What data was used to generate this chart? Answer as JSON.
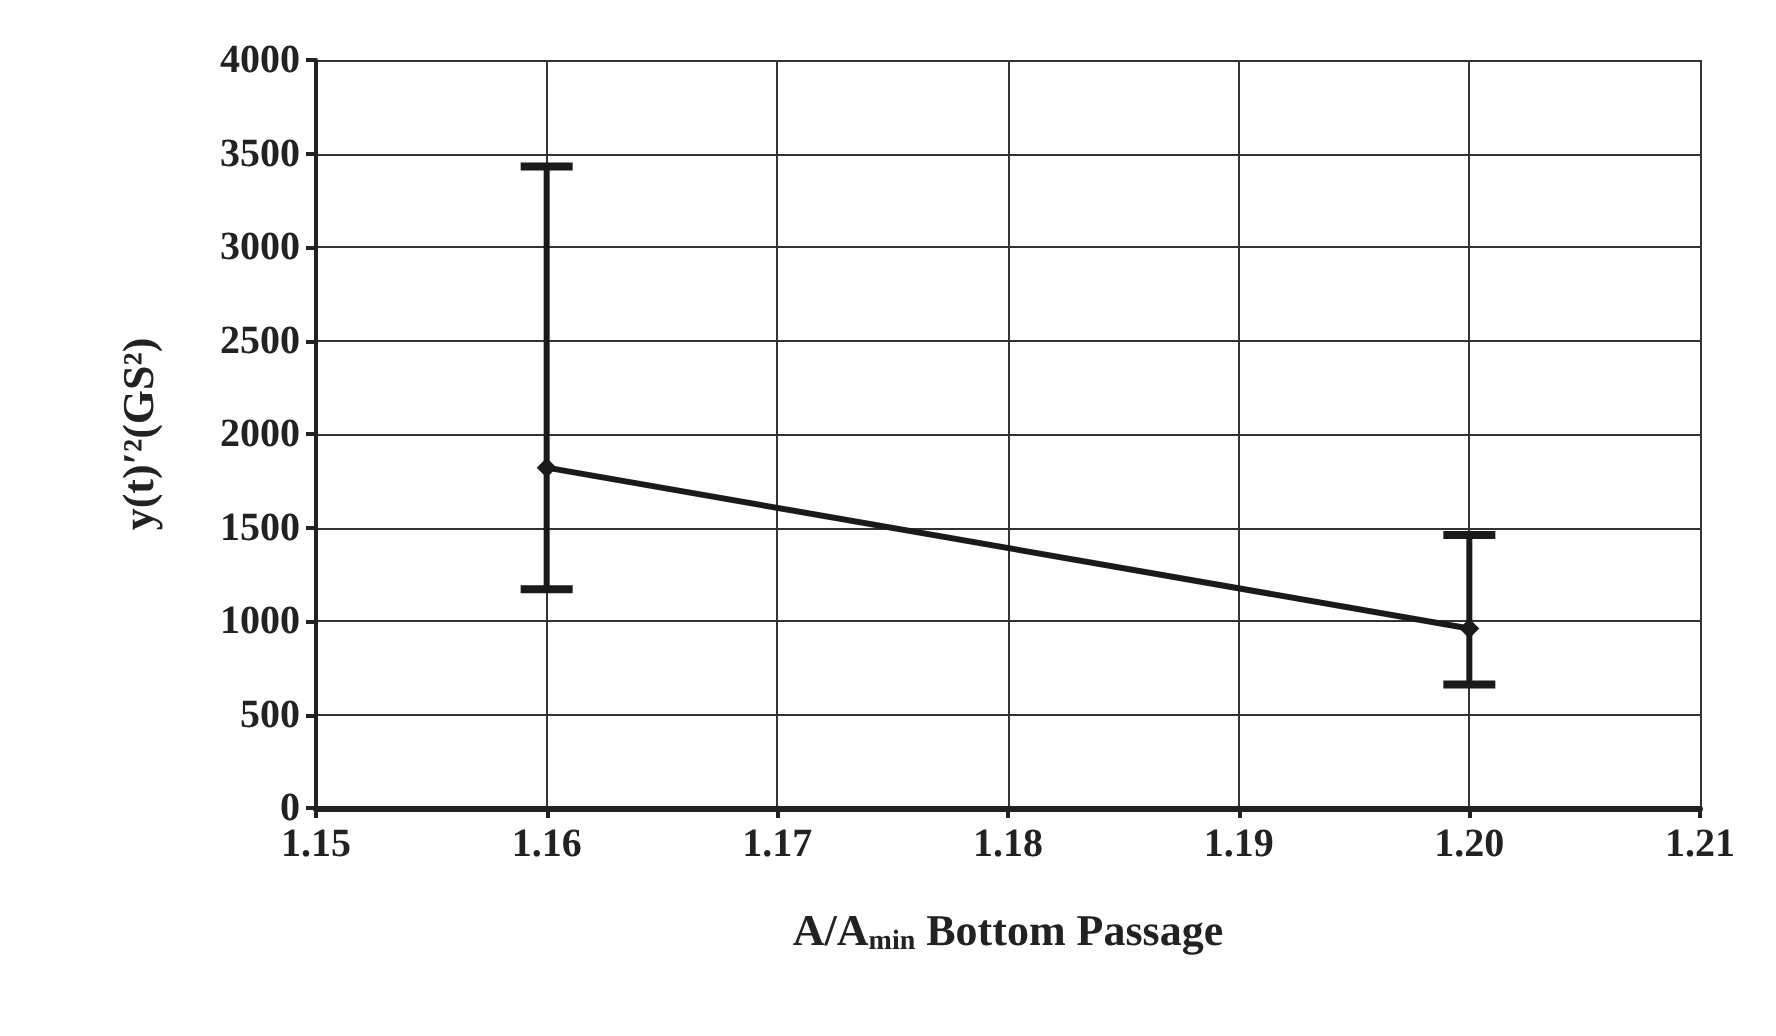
{
  "chart_data": {
    "type": "line",
    "xlabel": "A/A$_{min}$ Bottom Passage",
    "ylabel": "y(t)′²(GS²)",
    "x": [
      1.16,
      1.2
    ],
    "series": [
      {
        "color": "#1a1a1a",
        "values": [
          1820,
          960
        ],
        "errors": [
          [
            1170,
            3430
          ],
          [
            660,
            1460
          ]
        ]
      }
    ],
    "xlim": [
      1.15,
      1.21
    ],
    "xticks": [
      1.15,
      1.16,
      1.17,
      1.18,
      1.19,
      {
        "value": 1.2,
        "label": "1.20"
      },
      1.21
    ],
    "ylim": [
      0,
      4000
    ],
    "yticks": [
      0,
      500,
      1000,
      1500,
      2000,
      2500,
      3000,
      3500,
      4000
    ],
    "grid": true,
    "marker": "diamond",
    "line_style": "solid"
  }
}
